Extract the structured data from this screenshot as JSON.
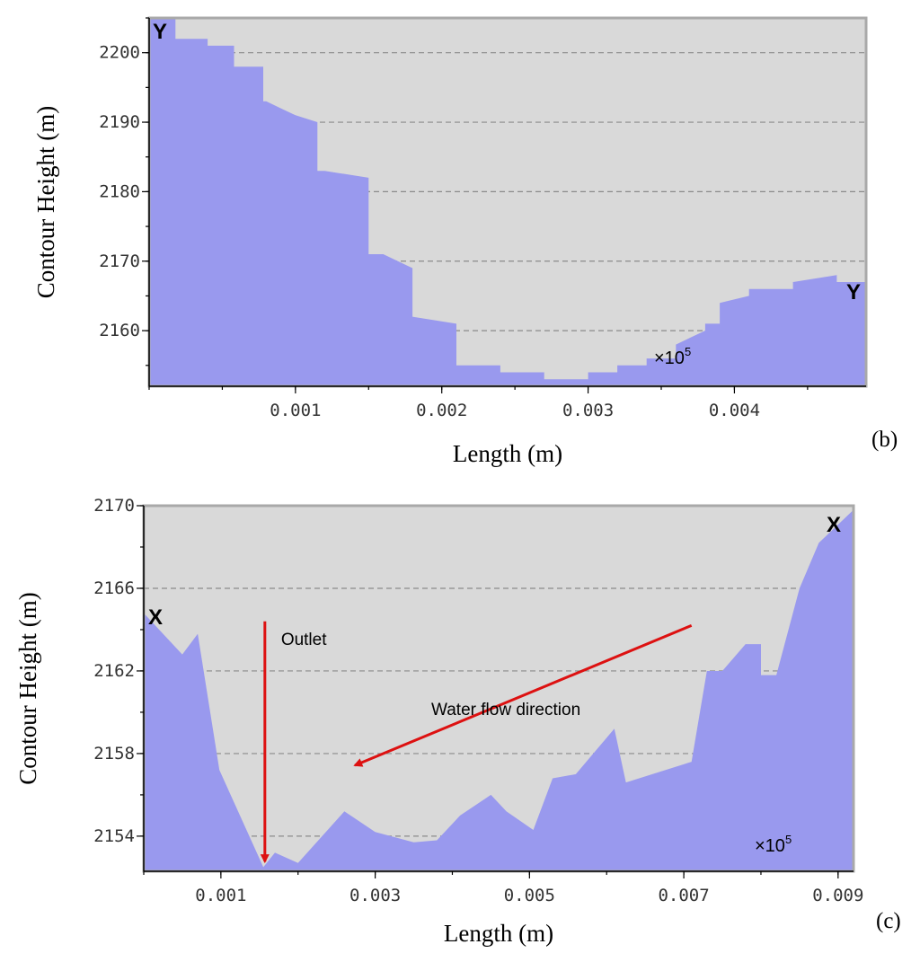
{
  "chart_data": [
    {
      "type": "area",
      "ylabel": "Contour Height (m)",
      "xlabel": "Length (m)",
      "xlim": [
        0,
        0.0049
      ],
      "ylim": [
        2152,
        2205
      ],
      "x_ticks": [
        0.001,
        0.002,
        0.003,
        0.004
      ],
      "y_ticks": [
        2160,
        2170,
        2180,
        2190,
        2200
      ],
      "x_tick_labels": [
        "0.001",
        "0.002",
        "0.003",
        "0.004"
      ],
      "y_tick_labels": [
        "2160",
        "2170",
        "2180",
        "2190",
        "2200"
      ],
      "grid": true,
      "fill_color": "#9999ee",
      "plot_bg": "#d9d9d9",
      "panel_label": "(b)",
      "end_labels": [
        "Y",
        "Y"
      ],
      "scale_note": {
        "base": "×10",
        "exp": "5"
      },
      "points": [
        [
          0.0,
          2205
        ],
        [
          0.00018,
          2205
        ],
        [
          0.00018,
          2202
        ],
        [
          0.0004,
          2202
        ],
        [
          0.0004,
          2201
        ],
        [
          0.00058,
          2201
        ],
        [
          0.00058,
          2198
        ],
        [
          0.00078,
          2198
        ],
        [
          0.00078,
          2197
        ],
        [
          0.00078,
          2193
        ],
        [
          0.0008,
          2193
        ],
        [
          0.0009,
          2192
        ],
        [
          0.001,
          2191
        ],
        [
          0.00115,
          2190
        ],
        [
          0.00115,
          2183
        ],
        [
          0.0012,
          2183
        ],
        [
          0.0015,
          2182
        ],
        [
          0.0015,
          2171
        ],
        [
          0.0016,
          2171
        ],
        [
          0.0018,
          2169
        ],
        [
          0.0018,
          2162
        ],
        [
          0.0021,
          2161
        ],
        [
          0.0021,
          2155
        ],
        [
          0.0024,
          2155
        ],
        [
          0.0024,
          2154
        ],
        [
          0.0027,
          2154
        ],
        [
          0.0027,
          2153
        ],
        [
          0.003,
          2153
        ],
        [
          0.003,
          2154
        ],
        [
          0.0032,
          2154
        ],
        [
          0.0032,
          2155
        ],
        [
          0.0034,
          2155
        ],
        [
          0.0034,
          2156
        ],
        [
          0.0036,
          2156
        ],
        [
          0.0036,
          2158
        ],
        [
          0.0037,
          2159
        ],
        [
          0.0038,
          2160
        ],
        [
          0.0038,
          2161
        ],
        [
          0.0039,
          2161
        ],
        [
          0.0039,
          2164
        ],
        [
          0.0041,
          2165
        ],
        [
          0.0041,
          2166
        ],
        [
          0.0044,
          2166
        ],
        [
          0.0044,
          2167
        ],
        [
          0.0047,
          2168
        ],
        [
          0.0047,
          2167
        ],
        [
          0.0049,
          2167
        ]
      ]
    },
    {
      "type": "area",
      "ylabel": "Contour Height (m)",
      "xlabel": "Length (m)",
      "xlim": [
        0,
        0.0092
      ],
      "ylim": [
        2152.3,
        2170
      ],
      "x_ticks": [
        0.001,
        0.003,
        0.005,
        0.007,
        0.009
      ],
      "y_ticks": [
        2154,
        2158,
        2162,
        2166,
        2170
      ],
      "x_tick_labels": [
        "0.001",
        "0.003",
        "0.005",
        "0.007",
        "0.009"
      ],
      "y_tick_labels": [
        "2154",
        "2158",
        "2162",
        "2166",
        "2170"
      ],
      "grid": true,
      "fill_color": "#9999ee",
      "plot_bg": "#d9d9d9",
      "panel_label": "(c)",
      "end_labels": [
        "X",
        "X"
      ],
      "scale_note": {
        "base": "×10",
        "exp": "5"
      },
      "annotations": {
        "outlet_label": "Outlet",
        "flow_label": "Water flow direction",
        "arrow_color": "#dd1111",
        "outlet_arrow": {
          "x": 0.00157,
          "y_from": 2164.4,
          "y_to": 2152.6
        },
        "flow_arrow": {
          "x_from": 0.0071,
          "y_from": 2164.2,
          "x_to": 0.00268,
          "y_to": 2157.3
        }
      },
      "points": [
        [
          0.0,
          2164.8
        ],
        [
          0.0005,
          2162.8
        ],
        [
          0.0007,
          2163.8
        ],
        [
          0.00098,
          2157.2
        ],
        [
          0.00155,
          2152.5
        ],
        [
          0.0017,
          2153.2
        ],
        [
          0.002,
          2152.7
        ],
        [
          0.0026,
          2155.2
        ],
        [
          0.003,
          2154.2
        ],
        [
          0.0035,
          2153.7
        ],
        [
          0.0038,
          2153.8
        ],
        [
          0.0041,
          2155.0
        ],
        [
          0.0045,
          2156.0
        ],
        [
          0.0047,
          2155.2
        ],
        [
          0.00505,
          2154.3
        ],
        [
          0.0053,
          2156.8
        ],
        [
          0.0056,
          2157.0
        ],
        [
          0.0061,
          2159.2
        ],
        [
          0.00625,
          2156.6
        ],
        [
          0.0071,
          2157.6
        ],
        [
          0.0073,
          2162.0
        ],
        [
          0.0075,
          2162.0
        ],
        [
          0.0078,
          2163.3
        ],
        [
          0.008,
          2163.3
        ],
        [
          0.008,
          2161.8
        ],
        [
          0.0082,
          2161.8
        ],
        [
          0.0085,
          2166.0
        ],
        [
          0.00875,
          2168.2
        ],
        [
          0.0092,
          2169.8
        ]
      ]
    }
  ]
}
